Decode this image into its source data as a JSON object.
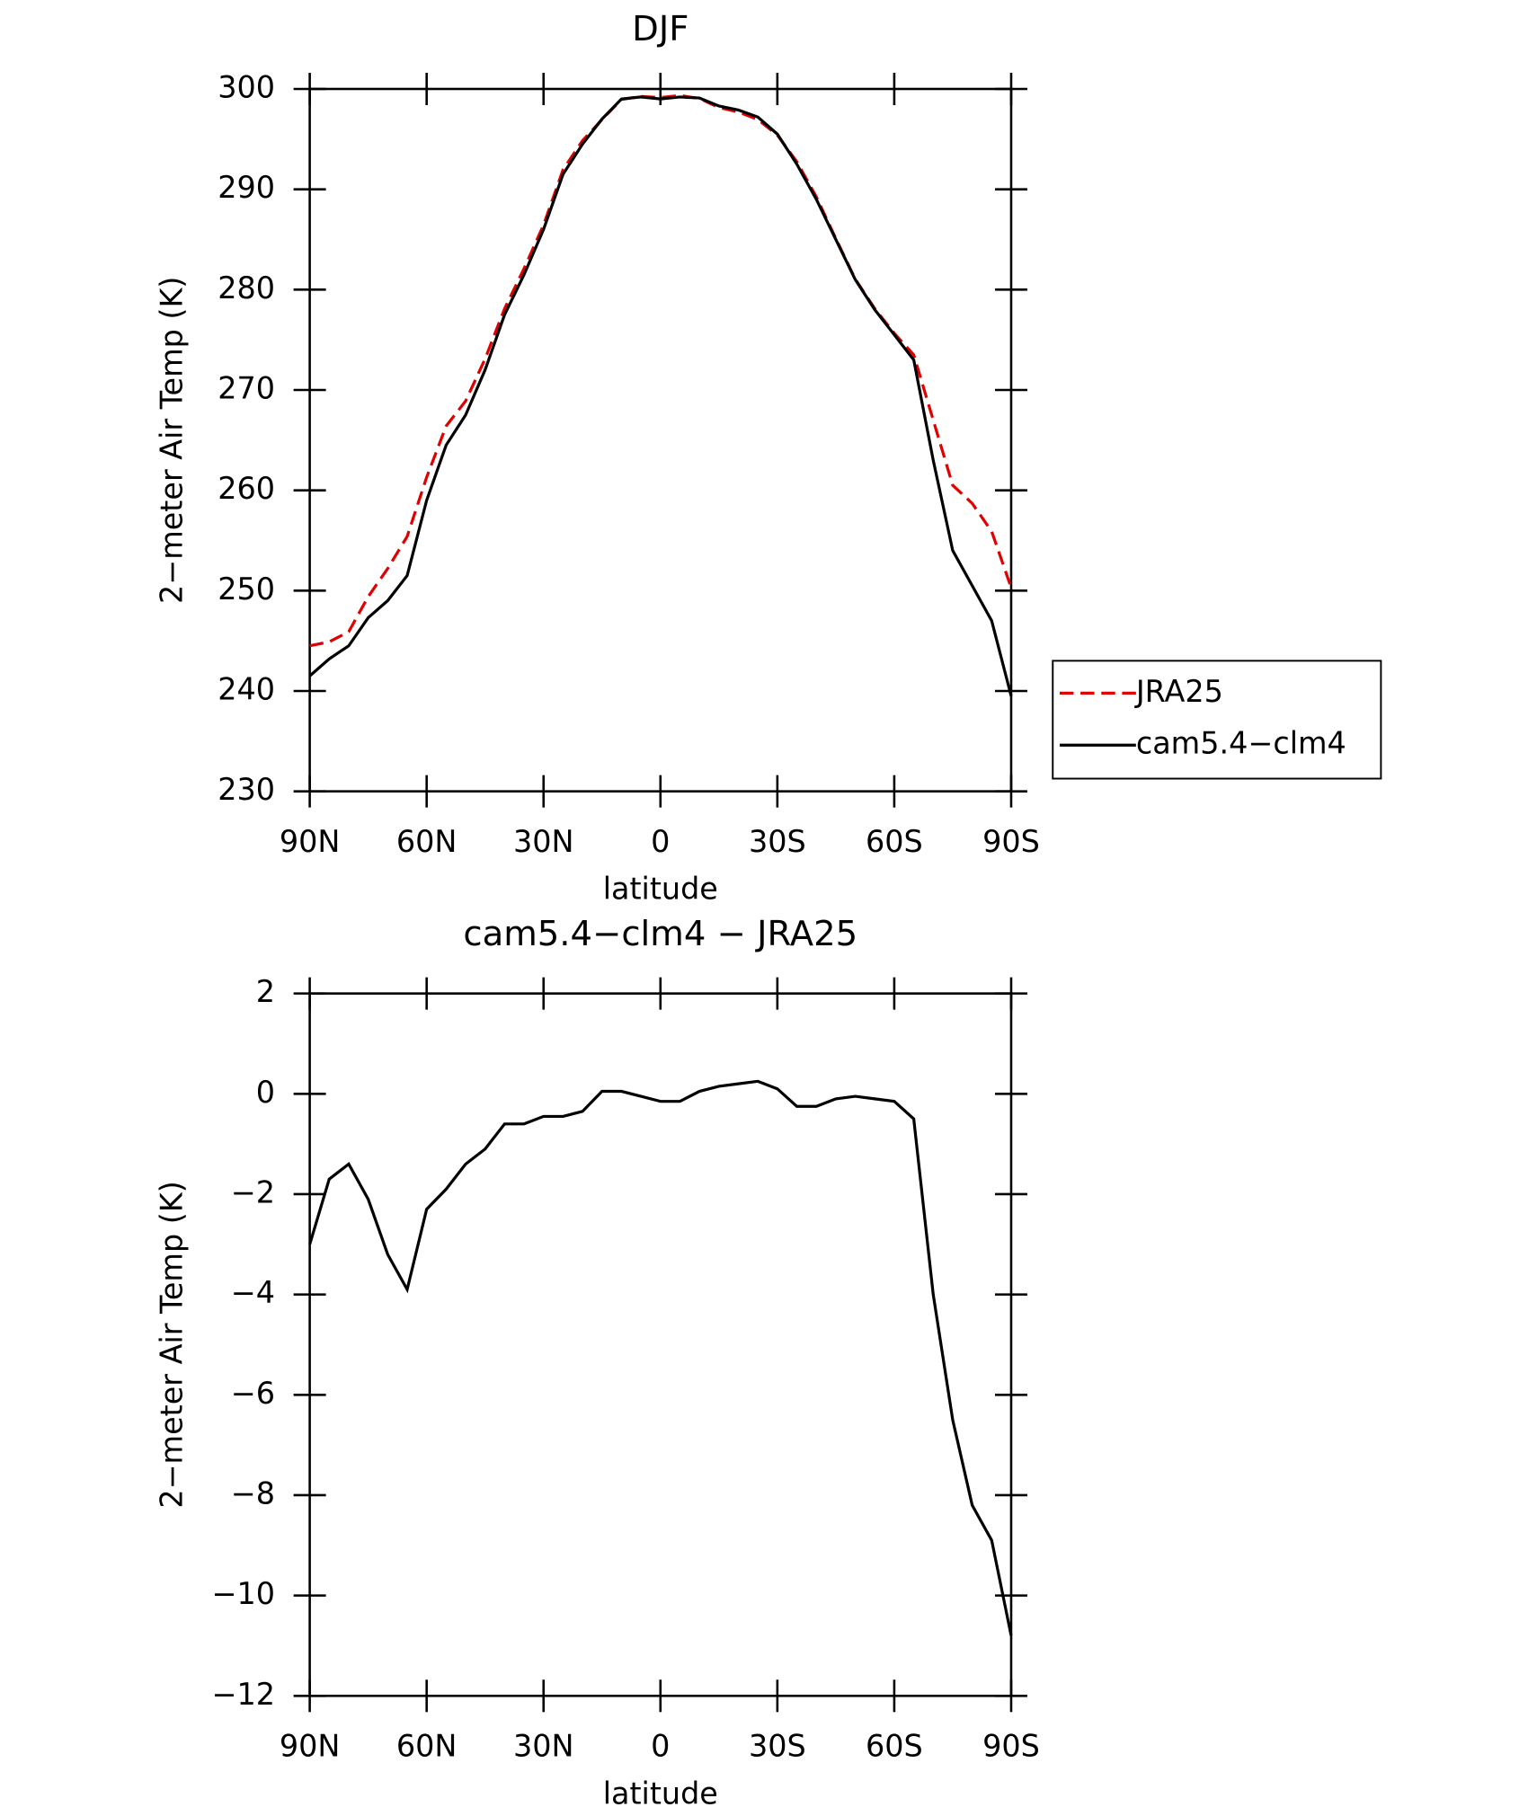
{
  "chart_data": [
    {
      "type": "line",
      "title": "DJF",
      "xlabel": "latitude",
      "ylabel": "2−meter Air Temp (K)",
      "x": [
        90,
        85,
        80,
        75,
        70,
        65,
        60,
        55,
        50,
        45,
        40,
        35,
        30,
        25,
        20,
        15,
        10,
        5,
        0,
        -5,
        -10,
        -15,
        -20,
        -25,
        -30,
        -35,
        -40,
        -45,
        -50,
        -55,
        -60,
        -65,
        -70,
        -75,
        -80,
        -85,
        -90
      ],
      "xlim": [
        90,
        -90
      ],
      "xticks": [
        {
          "value": 90,
          "label": "90N"
        },
        {
          "value": 60,
          "label": "60N"
        },
        {
          "value": 30,
          "label": "30N"
        },
        0,
        {
          "value": -30,
          "label": "30S"
        },
        {
          "value": -60,
          "label": "60S"
        },
        {
          "value": -90,
          "label": "90S"
        }
      ],
      "ylim": [
        230,
        300
      ],
      "yticks": [
        230,
        240,
        250,
        260,
        270,
        280,
        290,
        300
      ],
      "legend": "right",
      "series": [
        {
          "name": "JRA25",
          "color": "#e00000",
          "style": "dashed",
          "values": [
            244.5,
            244.9,
            245.9,
            249.4,
            252.2,
            255.4,
            261.3,
            266.4,
            268.9,
            273.1,
            278.1,
            282.1,
            286.45,
            291.95,
            294.85,
            296.95,
            298.95,
            299.25,
            299.15,
            299.35,
            299.05,
            298.15,
            297.7,
            296.95,
            295.4,
            292.75,
            289.25,
            285.1,
            281.05,
            278.1,
            275.65,
            273.5,
            267,
            260.5,
            258.7,
            255.9,
            250.3
          ]
        },
        {
          "name": "cam5.4−clm4",
          "color": "#000000",
          "style": "solid",
          "values": [
            241.5,
            243.2,
            244.5,
            247.3,
            249.0,
            251.5,
            259,
            264.5,
            267.5,
            272,
            277.5,
            281.5,
            286,
            291.5,
            294.5,
            297,
            299,
            299.2,
            299,
            299.2,
            299.1,
            298.3,
            297.9,
            297.2,
            295.5,
            292.5,
            289,
            285,
            281,
            278,
            275.5,
            273,
            263,
            254,
            250.5,
            247,
            239.5
          ]
        }
      ]
    },
    {
      "type": "line",
      "title": "cam5.4−clm4 − JRA25",
      "xlabel": "latitude",
      "ylabel": "2−meter Air Temp (K)",
      "x": [
        90,
        85,
        80,
        75,
        70,
        65,
        60,
        55,
        50,
        45,
        40,
        35,
        30,
        25,
        20,
        15,
        10,
        5,
        0,
        -5,
        -10,
        -15,
        -20,
        -25,
        -30,
        -35,
        -40,
        -45,
        -50,
        -55,
        -60,
        -65,
        -70,
        -75,
        -80,
        -85,
        -90
      ],
      "xlim": [
        90,
        -90
      ],
      "xticks": [
        {
          "value": 90,
          "label": "90N"
        },
        {
          "value": 60,
          "label": "60N"
        },
        {
          "value": 30,
          "label": "30N"
        },
        0,
        {
          "value": -30,
          "label": "30S"
        },
        {
          "value": -60,
          "label": "60S"
        },
        {
          "value": -90,
          "label": "90S"
        }
      ],
      "ylim": [
        -12,
        2
      ],
      "yticks": [
        {
          "value": -12,
          "label": "−12"
        },
        {
          "value": -10,
          "label": "−10"
        },
        {
          "value": -8,
          "label": "−8"
        },
        {
          "value": -6,
          "label": "−6"
        },
        {
          "value": -4,
          "label": "−4"
        },
        {
          "value": -2,
          "label": "−2"
        },
        0,
        2
      ],
      "series": [
        {
          "color": "#000000",
          "style": "solid",
          "values": [
            -3.0,
            -1.7,
            -1.4,
            -2.1,
            -3.2,
            -3.9,
            -2.3,
            -1.9,
            -1.4,
            -1.1,
            -0.6,
            -0.6,
            -0.45,
            -0.45,
            -0.35,
            0.05,
            0.05,
            -0.05,
            -0.15,
            -0.15,
            0.05,
            0.15,
            0.2,
            0.25,
            0.1,
            -0.25,
            -0.25,
            -0.1,
            -0.05,
            -0.1,
            -0.15,
            -0.5,
            -4.0,
            -6.5,
            -8.2,
            -8.9,
            -10.8
          ]
        }
      ]
    }
  ]
}
